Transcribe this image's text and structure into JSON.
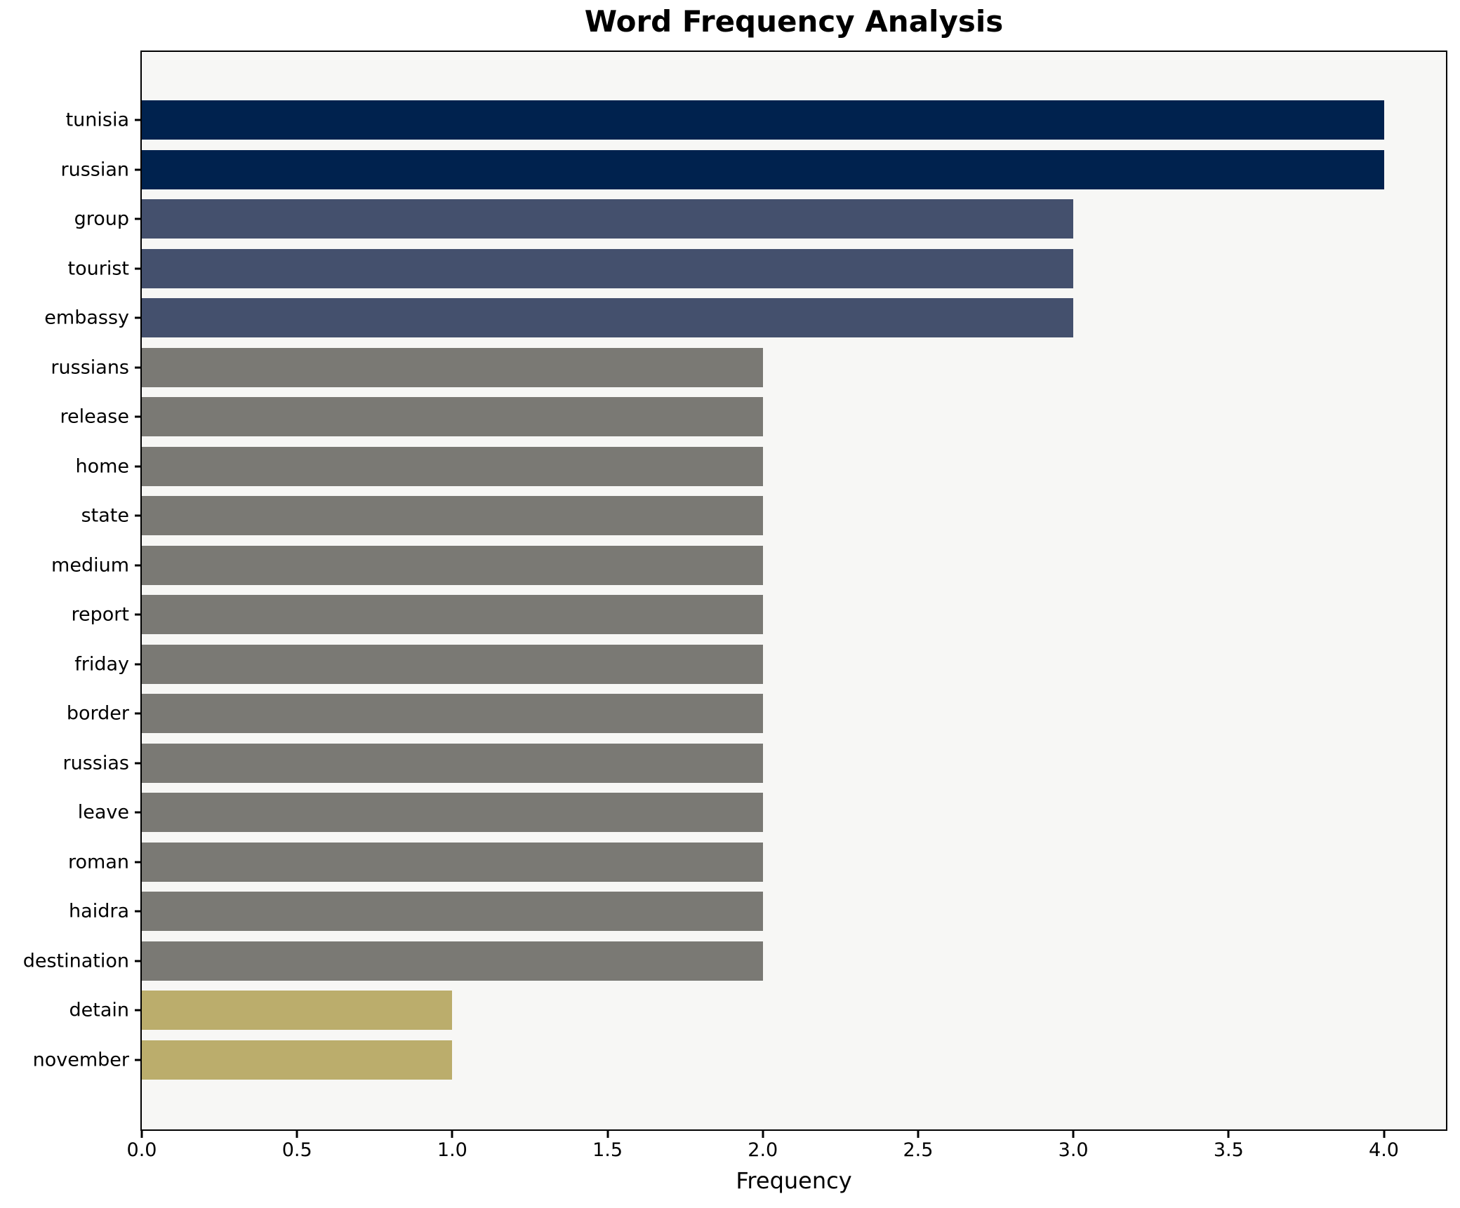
{
  "chart_data": {
    "type": "bar",
    "orientation": "horizontal",
    "title": "Word Frequency Analysis",
    "xlabel": "Frequency",
    "ylabel": "",
    "categories": [
      "tunisia",
      "russian",
      "group",
      "tourist",
      "embassy",
      "russians",
      "release",
      "home",
      "state",
      "medium",
      "report",
      "friday",
      "border",
      "russias",
      "leave",
      "roman",
      "haidra",
      "destination",
      "detain",
      "november"
    ],
    "values": [
      4,
      4,
      3,
      3,
      3,
      2,
      2,
      2,
      2,
      2,
      2,
      2,
      2,
      2,
      2,
      2,
      2,
      2,
      1,
      1
    ],
    "xlim": [
      0,
      4.2
    ],
    "xticks": [
      0.0,
      0.5,
      1.0,
      1.5,
      2.0,
      2.5,
      3.0,
      3.5,
      4.0
    ],
    "grid": false,
    "legend": "none",
    "bar_color_by_value": {
      "4": "#00224e",
      "3": "#44506d",
      "2": "#7a7974",
      "1": "#bbad6c"
    },
    "plot_background": "#f7f7f5",
    "spine_color": "#000000"
  }
}
